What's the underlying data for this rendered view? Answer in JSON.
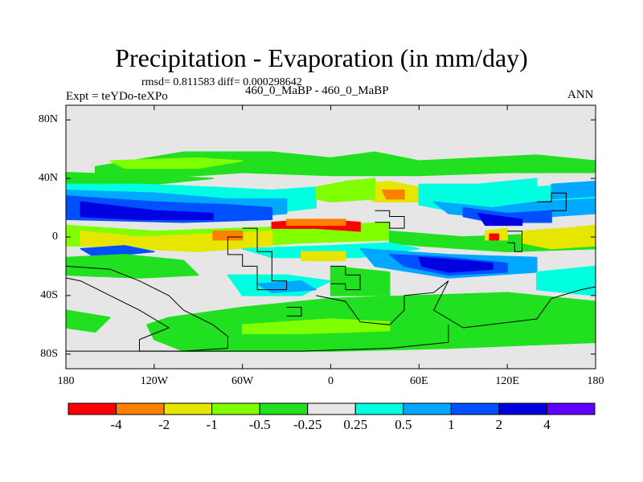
{
  "chart_data": {
    "type": "contour-map",
    "title": "Precipitation - Evaporation (in mm/day)",
    "stats": "rmsd= 0.811583 diff= 0.000298642",
    "expt": "Expt = teYDo-teXPo",
    "case": "460_0_MaBP - 460_0_MaBP",
    "season": "ANN",
    "xlim": [
      -180,
      180
    ],
    "ylim": [
      -90,
      90
    ],
    "x_ticks": [
      {
        "value": -180,
        "label": "180"
      },
      {
        "value": -120,
        "label": "120W"
      },
      {
        "value": -60,
        "label": "60W"
      },
      {
        "value": 0,
        "label": "0"
      },
      {
        "value": 60,
        "label": "60E"
      },
      {
        "value": 120,
        "label": "120E"
      },
      {
        "value": 180,
        "label": "180"
      }
    ],
    "y_ticks": [
      {
        "value": 80,
        "label": "80N"
      },
      {
        "value": 40,
        "label": "40N"
      },
      {
        "value": 0,
        "label": "0"
      },
      {
        "value": -40,
        "label": "40S"
      },
      {
        "value": -80,
        "label": "80S"
      }
    ],
    "colorbar": {
      "colors": [
        "#ff0000",
        "#ff7f00",
        "#e6e600",
        "#80ff00",
        "#20e020",
        "#e6e6e6",
        "#00ffe0",
        "#00a8ff",
        "#0050ff",
        "#0000e0",
        "#6000ff"
      ],
      "levels": [
        "-4",
        "-2",
        "-1",
        "-0.5",
        "-0.25",
        "0.25",
        "0.5",
        "1",
        "2",
        "4"
      ]
    },
    "colors": {
      "background": "#e6e6e6",
      "dry_strong": "#ff0000",
      "dry_mid": "#ff7f00",
      "dry_weak": "#e6e600",
      "dry_light": "#80ff00",
      "dry_faint": "#20e020",
      "wet_faint": "#00ffe0",
      "wet_light": "#00a8ff",
      "wet_mid": "#0050ff",
      "wet_strong": "#0000e0",
      "wet_extreme": "#6000ff"
    }
  }
}
